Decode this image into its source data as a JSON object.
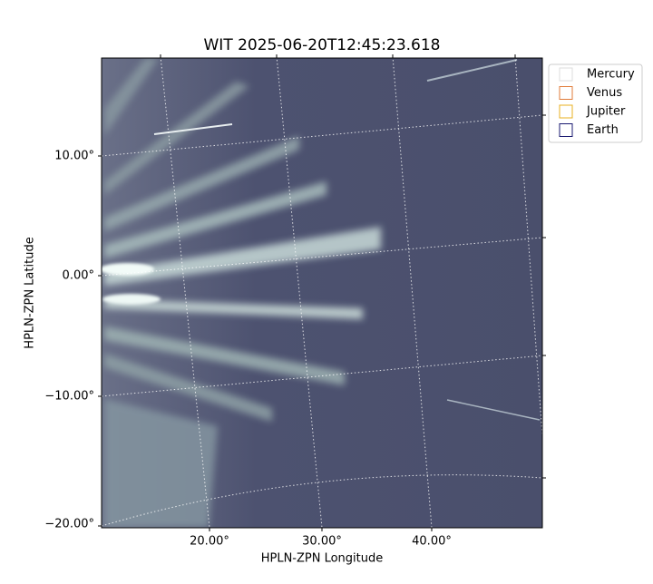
{
  "title": "WIT 2025-06-20T12:45:23.618",
  "x_axis": {
    "label": "HPLN-ZPN Longitude",
    "ticks": [
      "20.00°",
      "30.00°",
      "40.00°"
    ]
  },
  "y_axis": {
    "label": "HPLN-ZPN Latitude",
    "ticks": [
      "10.00°",
      "0.00°",
      "−10.00°",
      "−20.00°"
    ]
  },
  "legend": [
    {
      "name": "Mercury",
      "color": "#dddddd"
    },
    {
      "name": "Venus",
      "color": "#e07b39"
    },
    {
      "name": "Jupiter",
      "color": "#e8b020"
    },
    {
      "name": "Earth",
      "color": "#1a1a70"
    }
  ]
}
